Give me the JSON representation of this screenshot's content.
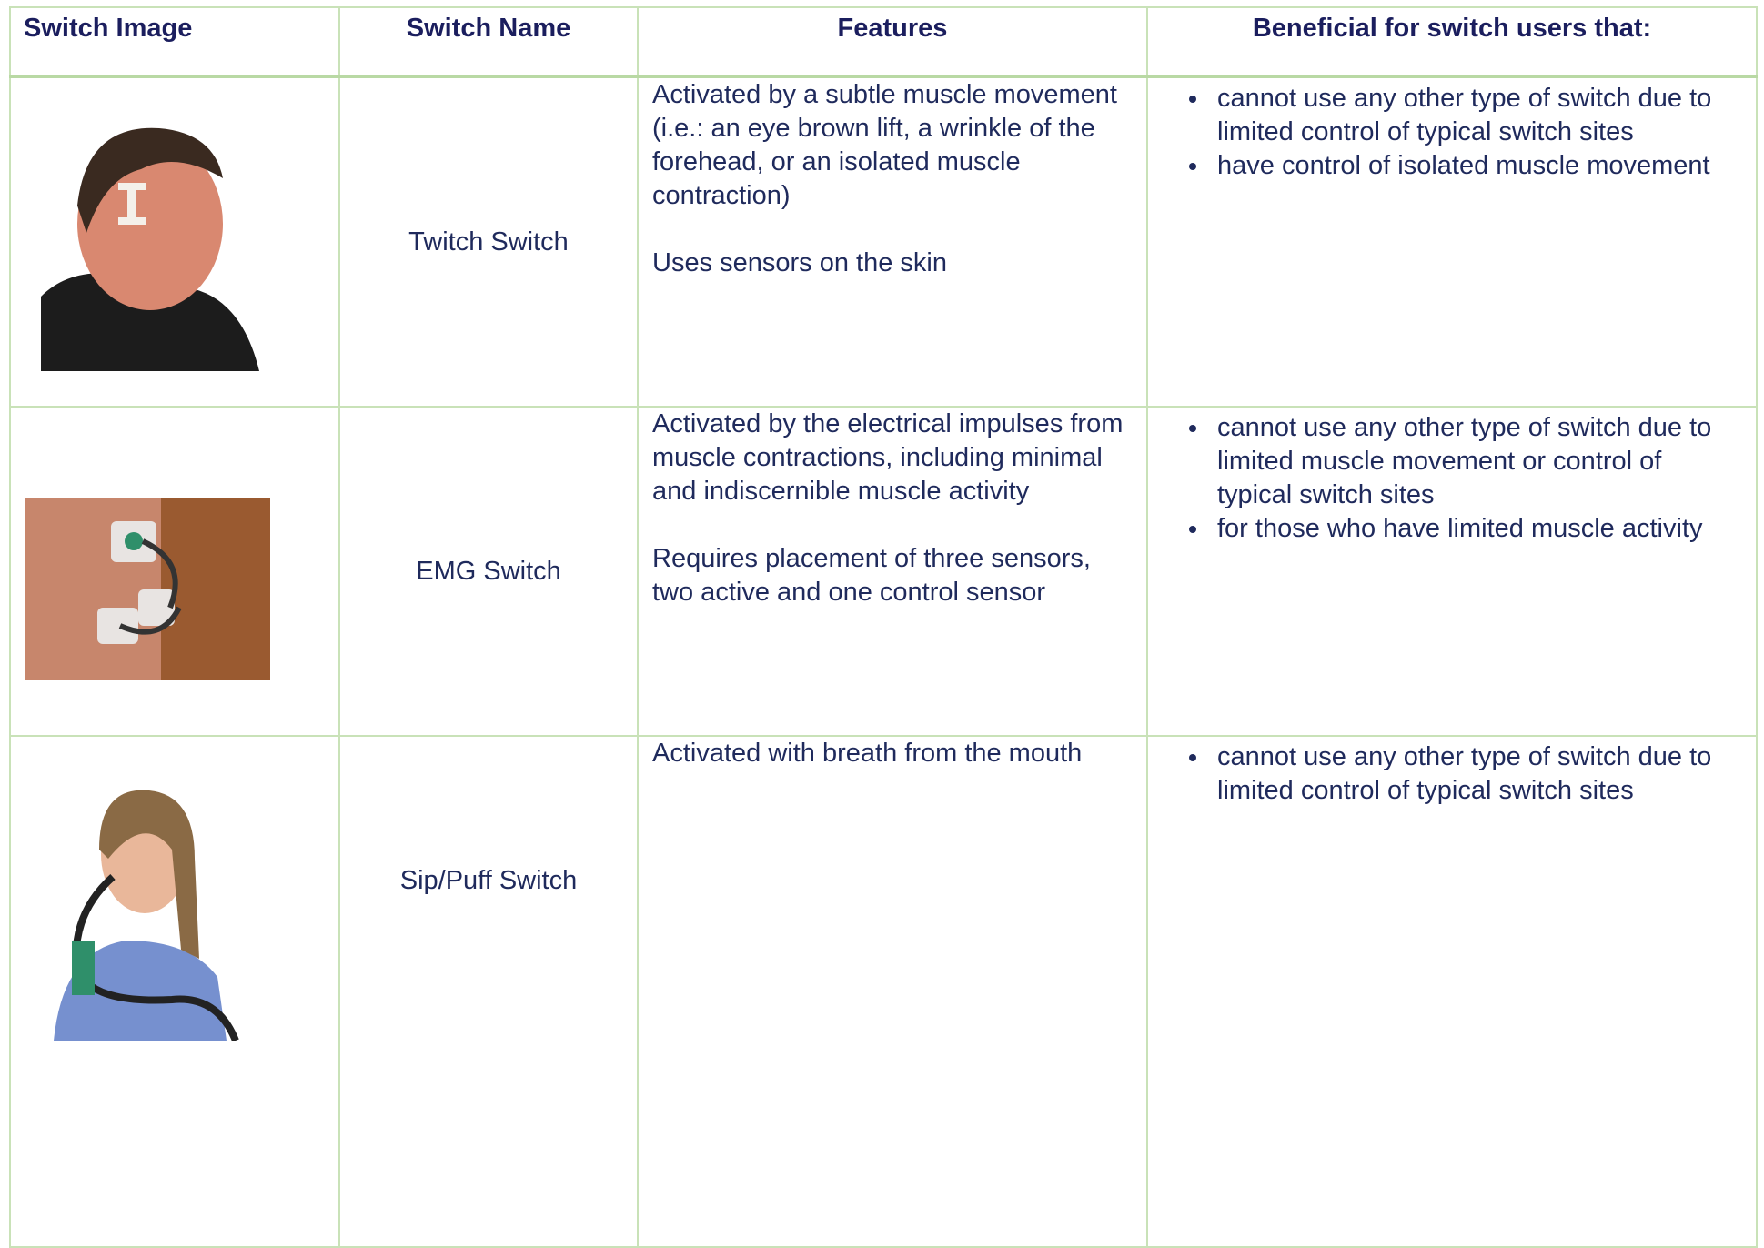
{
  "table": {
    "header": [
      "Switch Image",
      "Switch Name",
      "Features",
      "Beneficial for switch users that:"
    ],
    "rows": [
      {
        "name": "Twitch Switch",
        "features": [
          "Activated by a subtle muscle movement (i.e.: an eye brown lift, a wrinkle of the forehead, or an isolated muscle contraction)",
          "Uses sensors on the skin"
        ],
        "benefits": [
          "cannot use any other type of switch due to limited control of typical switch sites",
          "have control of isolated muscle movement"
        ]
      },
      {
        "name": "EMG Switch",
        "features": [
          "Activated by the electrical impulses from muscle contractions, including minimal and indiscernible muscle activity",
          "Requires placement of three sensors, two active and one control sensor"
        ],
        "benefits": [
          "cannot use any other type of switch due to limited muscle movement or control of typical switch sites",
          "for those who have limited muscle activity"
        ]
      },
      {
        "name": "Sip/Puff Switch",
        "features": [
          "Activated with breath from the mouth"
        ],
        "benefits": [
          "cannot use any other type of switch due to limited control of typical switch sites"
        ]
      }
    ]
  }
}
